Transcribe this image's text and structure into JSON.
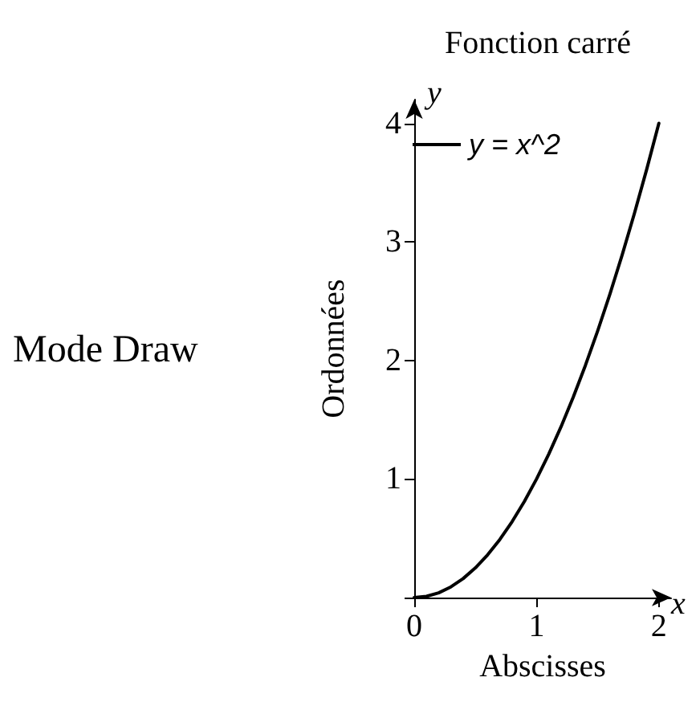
{
  "chart_data": {
    "type": "line",
    "title": "Fonction carré",
    "xlabel": "Abscisses",
    "ylabel": "Ordonnées",
    "annotations": [
      "Mode Draw",
      "x",
      "y"
    ],
    "x": [
      0,
      0.1,
      0.2,
      0.3,
      0.4,
      0.5,
      0.6,
      0.7,
      0.8,
      0.9,
      1,
      1.1,
      1.2,
      1.3,
      1.4,
      1.5,
      1.6,
      1.7,
      1.8,
      1.9,
      2
    ],
    "series": [
      {
        "name": "y = x^2",
        "color": "#000000",
        "values": [
          0,
          0.01,
          0.04,
          0.09,
          0.16,
          0.25,
          0.36,
          0.49,
          0.64,
          0.81,
          1,
          1.21,
          1.44,
          1.69,
          1.96,
          2.25,
          2.56,
          2.89,
          3.24,
          3.61,
          4
        ]
      }
    ],
    "xlim": [
      0,
      2.1
    ],
    "ylim": [
      0,
      4.2
    ],
    "xticks": [
      0,
      1,
      2
    ],
    "yticks": [
      {
        "value": 0,
        "label": null
      },
      1,
      2,
      3,
      4
    ],
    "grid": false,
    "legend": "top left",
    "marker": "none",
    "line_style": "solid"
  }
}
